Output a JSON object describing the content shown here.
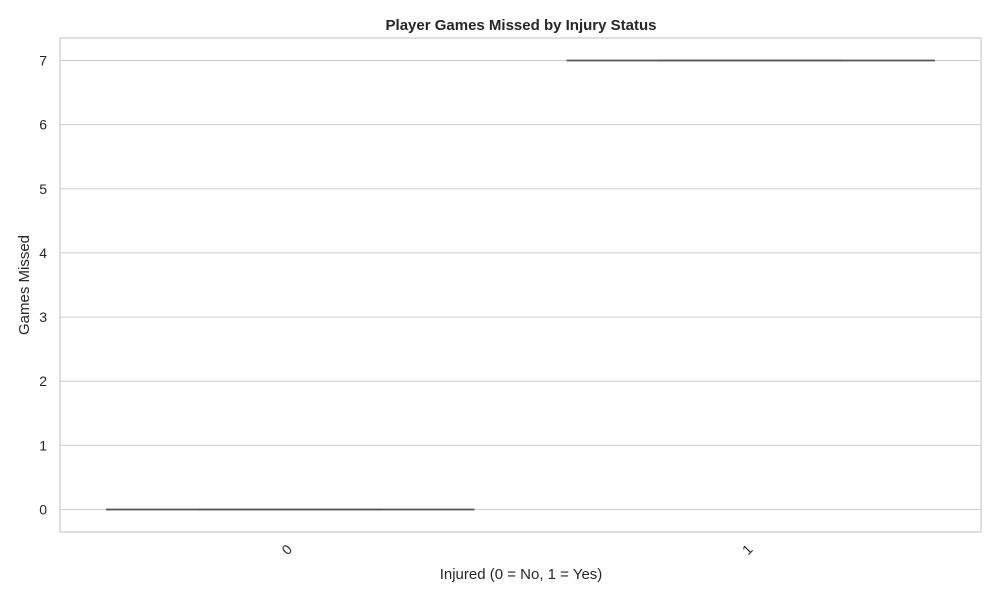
{
  "chart_data": {
    "type": "box",
    "title": "Player Games Missed by Injury Status",
    "xlabel": "Injured (0 = No, 1 = Yes)",
    "ylabel": "Games Missed",
    "categories": [
      "0",
      "1"
    ],
    "ylim": [
      -0.35,
      7.35
    ],
    "yticks": [
      0,
      1,
      2,
      3,
      4,
      5,
      6,
      7
    ],
    "grid": true,
    "boxes": [
      {
        "category": "0",
        "min": 0,
        "q1": 0,
        "median": 0,
        "q3": 0,
        "max": 0
      },
      {
        "category": "1",
        "min": 7,
        "q1": 7,
        "median": 7,
        "q3": 7,
        "max": 7
      }
    ],
    "colors": {
      "line": "#555555",
      "grid": "#cccccc",
      "text": "#262626"
    }
  }
}
